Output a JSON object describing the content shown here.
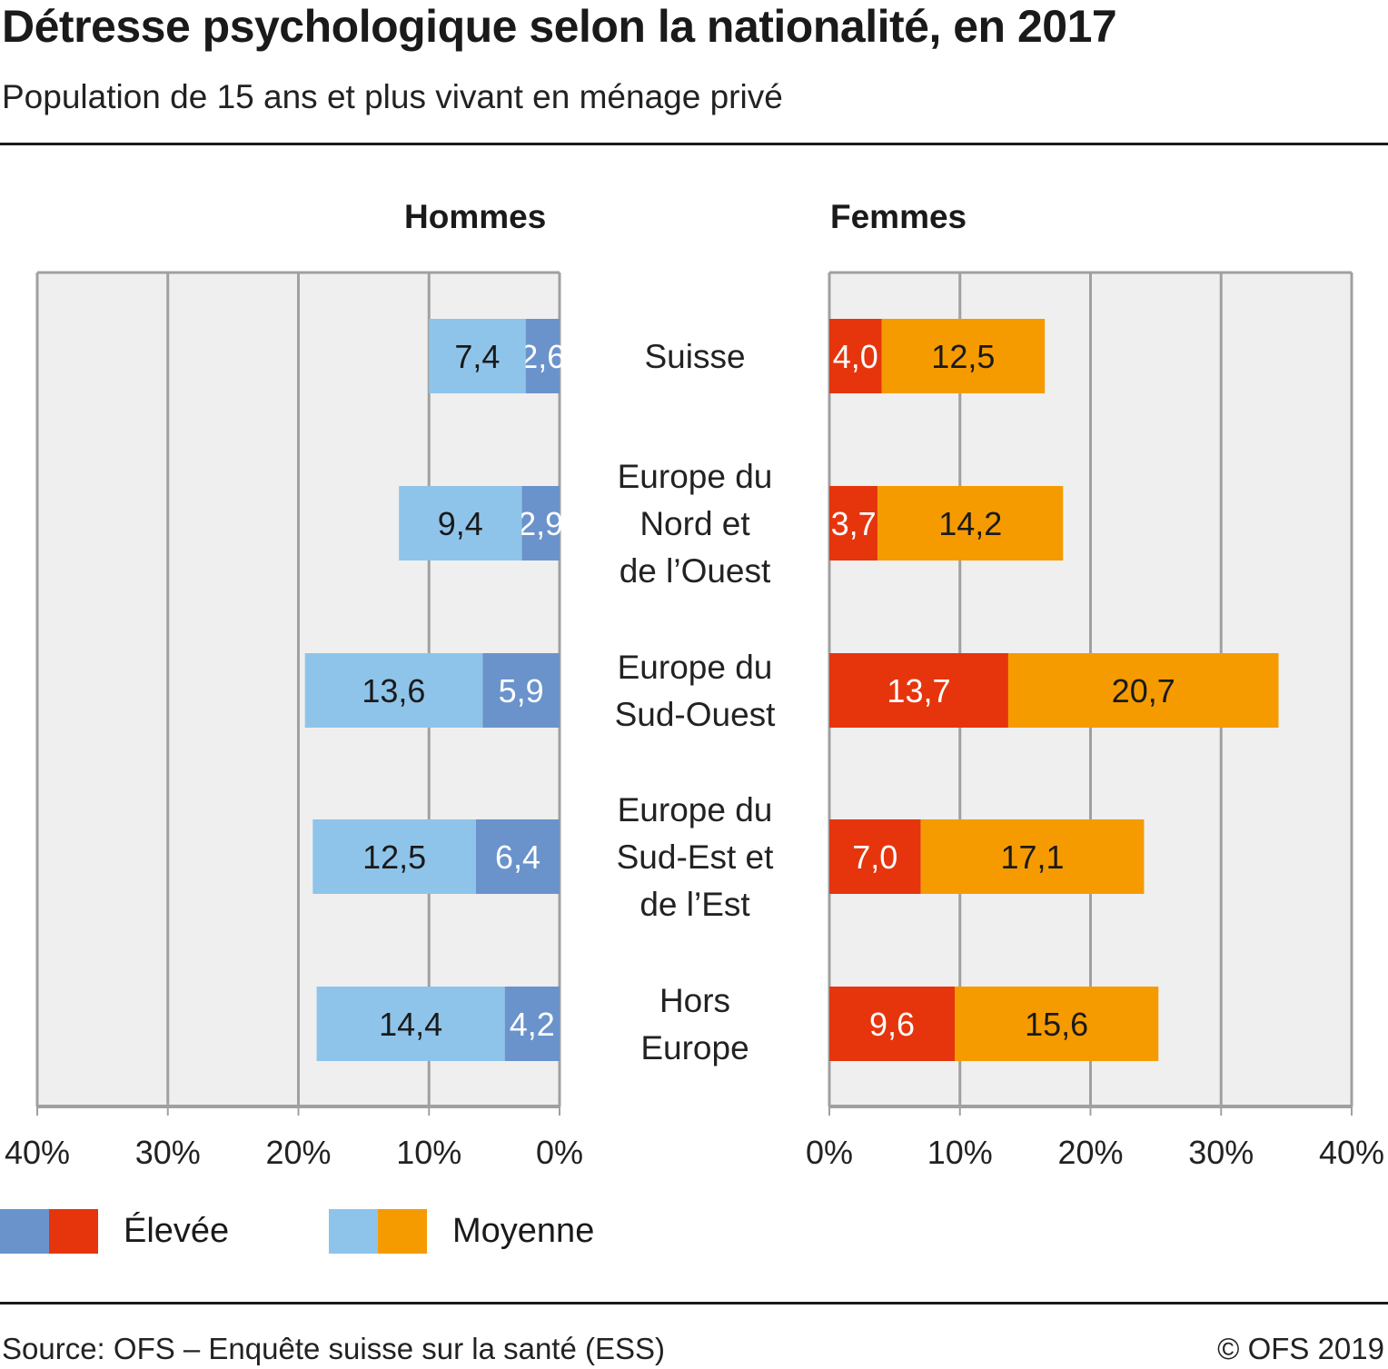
{
  "header": {
    "title": "Détresse psychologique selon la nationalité, en 2017",
    "subtitle": "Population de 15 ans et plus vivant en ménage privé"
  },
  "footer": {
    "source": "Source: OFS – Enquête suisse sur la santé (ESS)",
    "copyright": "© OFS 2019"
  },
  "colors": {
    "hommes_elevee": "#6a93cb",
    "hommes_moyenne": "#8fc4ea",
    "femmes_elevee": "#e6350d",
    "femmes_moyenne": "#f59b00",
    "panel_bg": "#efefef",
    "grid": "#a0a0a0"
  },
  "legend": [
    {
      "label": "Élevée",
      "colors": [
        "#6a93cb",
        "#e6350d"
      ]
    },
    {
      "label": "Moyenne",
      "colors": [
        "#8fc4ea",
        "#f59b00"
      ]
    }
  ],
  "chart_data": {
    "type": "bar",
    "orientation": "horizontal-stacked-population-pyramid",
    "title": "Détresse psychologique selon la nationalité, en 2017",
    "subtitle": "Population de 15 ans et plus vivant en ménage privé",
    "categories": [
      "Suisse",
      "Europe du\nNord et\nde l’Ouest",
      "Europe du\nSud-Ouest",
      "Europe du\nSud-Est et\nde l’Est",
      "Hors\nEurope"
    ],
    "panels": [
      {
        "name": "Hommes",
        "direction": "left",
        "xlim": [
          0,
          40
        ],
        "ticks": [
          "40%",
          "30%",
          "20%",
          "10%",
          "0%"
        ],
        "tick_values": [
          40,
          30,
          20,
          10,
          0
        ],
        "series": [
          {
            "name": "Élevée",
            "color": "#6a93cb",
            "label_color": "#ffffff",
            "values": [
              2.6,
              2.9,
              5.9,
              6.4,
              4.2
            ],
            "labels": [
              "2,6",
              "2,9",
              "5,9",
              "6,4",
              "4,2"
            ]
          },
          {
            "name": "Moyenne",
            "color": "#8fc4ea",
            "label_color": "#1a1a1a",
            "values": [
              7.4,
              9.4,
              13.6,
              12.5,
              14.4
            ],
            "labels": [
              "7,4",
              "9,4",
              "13,6",
              "12,5",
              "14,4"
            ]
          }
        ]
      },
      {
        "name": "Femmes",
        "direction": "right",
        "xlim": [
          0,
          40
        ],
        "ticks": [
          "0%",
          "10%",
          "20%",
          "30%",
          "40%"
        ],
        "tick_values": [
          0,
          10,
          20,
          30,
          40
        ],
        "series": [
          {
            "name": "Élevée",
            "color": "#e6350d",
            "label_color": "#ffffff",
            "values": [
              4.0,
              3.7,
              13.7,
              7.0,
              9.6
            ],
            "labels": [
              "4,0",
              "3,7",
              "13,7",
              "7,0",
              "9,6"
            ]
          },
          {
            "name": "Moyenne",
            "color": "#f59b00",
            "label_color": "#1a1a1a",
            "values": [
              12.5,
              14.2,
              20.7,
              17.1,
              15.6
            ],
            "labels": [
              "12,5",
              "14,2",
              "20,7",
              "17,1",
              "15,6"
            ]
          }
        ]
      }
    ],
    "legend": [
      "Élevée",
      "Moyenne"
    ],
    "legend_position": "bottom-left",
    "grid": true,
    "xlabel": "",
    "ylabel": ""
  }
}
